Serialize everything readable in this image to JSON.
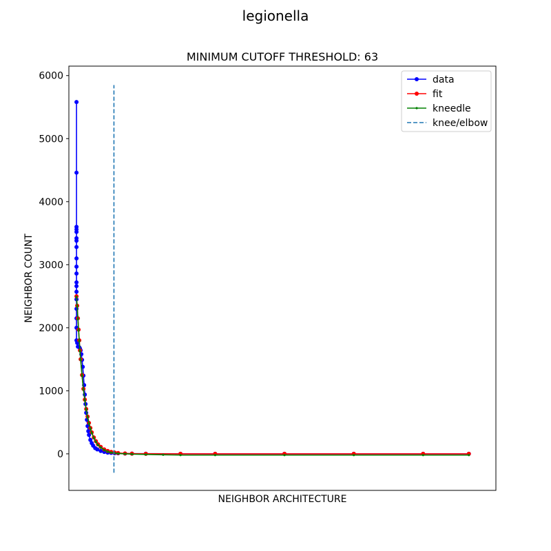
{
  "figure": {
    "suptitle": "legionella"
  },
  "chart_data": {
    "type": "line",
    "title": "MINIMUM CUTOFF THRESHOLD: 63",
    "xlabel": "NEIGHBOR ARCHITECTURE",
    "ylabel": "NEIGHBOR COUNT",
    "xlim": [
      -11,
      605
    ],
    "ylim": [
      -580,
      6150
    ],
    "yticks": [
      0,
      1000,
      2000,
      3000,
      4000,
      5000,
      6000
    ],
    "x_tick_labels_shown": false,
    "grid": false,
    "legend_position": "upper right",
    "series": [
      {
        "name": "data",
        "color": "#0000ff",
        "marker": "circle",
        "x": [
          0,
          0,
          0,
          0,
          0,
          0,
          0,
          0,
          0,
          0,
          0,
          0,
          0,
          0,
          0,
          0,
          0,
          0,
          0,
          1,
          2,
          3,
          4,
          5,
          6,
          7,
          8,
          9,
          10,
          11,
          12,
          13,
          14,
          15,
          16,
          17,
          18,
          20,
          22,
          24,
          27,
          30,
          35,
          40,
          45,
          50,
          55,
          60,
          70,
          80,
          100,
          150,
          200,
          300,
          400,
          500,
          566
        ],
        "y": [
          5580,
          4460,
          3600,
          3560,
          3520,
          3420,
          3380,
          3280,
          3100,
          2970,
          2860,
          2720,
          2660,
          2570,
          2450,
          2300,
          2150,
          2000,
          1800,
          1760,
          1700,
          1700,
          1690,
          1670,
          1640,
          1580,
          1490,
          1380,
          1240,
          1090,
          940,
          790,
          650,
          540,
          440,
          360,
          300,
          220,
          170,
          130,
          90,
          70,
          45,
          30,
          20,
          15,
          10,
          8,
          5,
          3,
          2,
          1,
          0,
          0,
          0,
          0,
          0
        ]
      },
      {
        "name": "fit",
        "color": "#ff0000",
        "marker": "circle",
        "x": [
          0,
          1,
          2,
          3,
          4,
          5,
          6,
          8,
          10,
          12,
          14,
          16,
          18,
          20,
          22,
          25,
          28,
          31,
          35,
          40,
          45,
          50,
          55,
          60,
          70,
          80,
          100,
          150,
          200,
          300,
          400,
          500,
          566
        ],
        "y": [
          2500,
          2350,
          2150,
          1970,
          1800,
          1640,
          1500,
          1250,
          1030,
          860,
          710,
          590,
          490,
          410,
          340,
          260,
          200,
          150,
          110,
          70,
          45,
          30,
          20,
          13,
          6,
          3,
          1,
          0,
          0,
          0,
          0,
          0,
          0
        ]
      },
      {
        "name": "kneedle",
        "color": "#008000",
        "marker": "point",
        "x": [
          0,
          1,
          2,
          3,
          4,
          5,
          6,
          8,
          10,
          12,
          14,
          16,
          18,
          20,
          22,
          25,
          28,
          31,
          35,
          40,
          45,
          50,
          55,
          60,
          70,
          80,
          100,
          125,
          150,
          200,
          300,
          400,
          500,
          566
        ],
        "y": [
          2490,
          2340,
          2140,
          1960,
          1790,
          1630,
          1490,
          1240,
          1020,
          850,
          700,
          580,
          480,
          400,
          330,
          250,
          190,
          140,
          100,
          60,
          35,
          20,
          10,
          5,
          0,
          -5,
          -10,
          -15,
          -20,
          -20,
          -20,
          -20,
          -20,
          -20
        ]
      }
    ],
    "vline": {
      "name": "knee/elbow",
      "x": 54,
      "color": "#1f77b4",
      "style": "dashed",
      "y_from": -300,
      "y_to": 5850
    }
  }
}
